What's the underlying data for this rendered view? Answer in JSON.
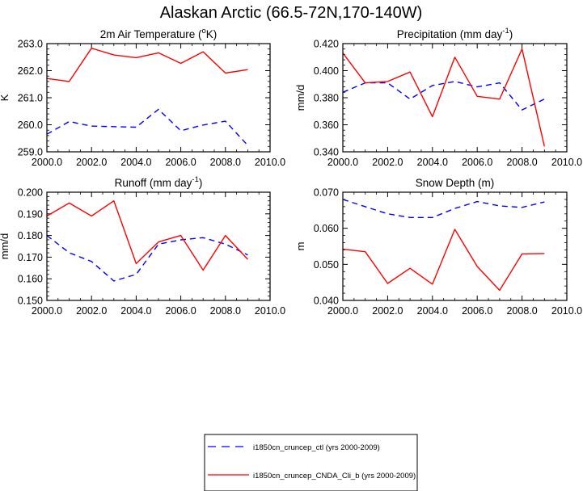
{
  "figure": {
    "title": "Alaskan Arctic (66.5-72N,170-140W)"
  },
  "legend": {
    "items": [
      {
        "series_key": "ctl",
        "label": "i1850cn_cruncep_ctl (yrs 2000-2009)"
      },
      {
        "series_key": "cnda",
        "label": "i1850cn_cruncep_CNDA_Cli_b (yrs 2000-2009)"
      }
    ]
  },
  "series_styles": {
    "ctl": {
      "color": "#0000ff",
      "dash": "dashed"
    },
    "cnda": {
      "color": "#ff0000",
      "dash": "solid"
    }
  },
  "chart_data": [
    {
      "type": "line",
      "title_main": "2m Air Temperature (",
      "title_sup": "o",
      "title_end": "K)",
      "ylabel": "K",
      "xlim": [
        2000,
        2010
      ],
      "xticks": [
        "2000.0",
        "2002.0",
        "2004.0",
        "2006.0",
        "2008.0",
        "2010.0"
      ],
      "ylim": [
        259,
        263
      ],
      "yticks": [
        "259.0",
        "260.0",
        "261.0",
        "262.0",
        "263.0"
      ],
      "x": [
        2000,
        2001,
        2002,
        2003,
        2004,
        2005,
        2006,
        2007,
        2008,
        2009
      ],
      "series": [
        {
          "key": "ctl",
          "values": [
            259.65,
            260.12,
            259.95,
            259.93,
            259.91,
            260.57,
            259.78,
            259.99,
            260.13,
            259.24
          ]
        },
        {
          "key": "cnda",
          "values": [
            261.71,
            261.6,
            262.83,
            262.58,
            262.48,
            262.66,
            262.27,
            262.7,
            261.91,
            262.04
          ]
        }
      ]
    },
    {
      "type": "line",
      "title_main": "Precipitation (mm day",
      "title_sup": "-1",
      "title_end": ")",
      "ylabel": "mm/d",
      "xlim": [
        2000,
        2010
      ],
      "xticks": [
        "2000.0",
        "2002.0",
        "2004.0",
        "2006.0",
        "2008.0",
        "2010.0"
      ],
      "ylim": [
        0.34,
        0.42
      ],
      "yticks": [
        "0.340",
        "0.360",
        "0.380",
        "0.400",
        "0.420"
      ],
      "x": [
        2000,
        2001,
        2002,
        2003,
        2004,
        2005,
        2006,
        2007,
        2008,
        2009
      ],
      "series": [
        {
          "key": "ctl",
          "values": [
            0.384,
            0.391,
            0.391,
            0.379,
            0.389,
            0.392,
            0.388,
            0.391,
            0.371,
            0.379
          ]
        },
        {
          "key": "cnda",
          "values": [
            0.413,
            0.391,
            0.392,
            0.399,
            0.366,
            0.41,
            0.381,
            0.379,
            0.416,
            0.344
          ]
        }
      ]
    },
    {
      "type": "line",
      "title_main": "Runoff (mm day",
      "title_sup": "-1",
      "title_end": ")",
      "ylabel": "mm/d",
      "xlim": [
        2000,
        2010
      ],
      "xticks": [
        "2000.0",
        "2002.0",
        "2004.0",
        "2006.0",
        "2008.0",
        "2010.0"
      ],
      "ylim": [
        0.15,
        0.2
      ],
      "yticks": [
        "0.150",
        "0.160",
        "0.170",
        "0.180",
        "0.190",
        "0.200"
      ],
      "x": [
        2000,
        2001,
        2002,
        2003,
        2004,
        2005,
        2006,
        2007,
        2008,
        2009
      ],
      "series": [
        {
          "key": "ctl",
          "values": [
            0.18,
            0.172,
            0.168,
            0.159,
            0.162,
            0.176,
            0.178,
            0.179,
            0.176,
            0.171
          ]
        },
        {
          "key": "cnda",
          "values": [
            0.189,
            0.195,
            0.189,
            0.196,
            0.167,
            0.177,
            0.18,
            0.164,
            0.18,
            0.169
          ]
        }
      ]
    },
    {
      "type": "line",
      "title_main": "Snow Depth (m)",
      "title_sup": "",
      "title_end": "",
      "ylabel": "m",
      "xlim": [
        2000,
        2010
      ],
      "xticks": [
        "2000.0",
        "2002.0",
        "2004.0",
        "2006.0",
        "2008.0",
        "2010.0"
      ],
      "ylim": [
        0.04,
        0.07
      ],
      "yticks": [
        "0.040",
        "0.050",
        "0.060",
        "0.070"
      ],
      "x": [
        2000,
        2001,
        2002,
        2003,
        2004,
        2005,
        2006,
        2007,
        2008,
        2009
      ],
      "series": [
        {
          "key": "ctl",
          "values": [
            0.068,
            0.066,
            0.064,
            0.063,
            0.063,
            0.0655,
            0.0674,
            0.0662,
            0.0658,
            0.0673
          ]
        },
        {
          "key": "cnda",
          "values": [
            0.0542,
            0.0535,
            0.0447,
            0.0489,
            0.0445,
            0.0597,
            0.0494,
            0.0428,
            0.0529,
            0.053
          ]
        }
      ]
    }
  ]
}
